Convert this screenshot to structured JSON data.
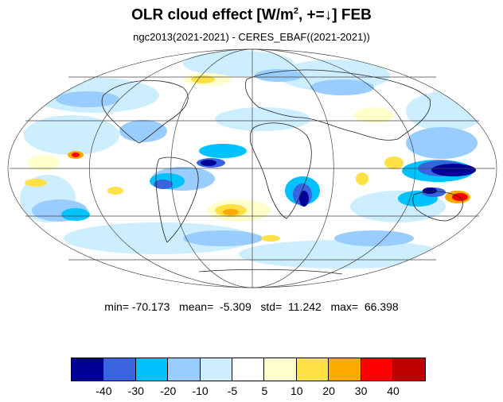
{
  "title": {
    "main": "OLR cloud effect [W/m",
    "sup": "2",
    "tail": ", +=↓]  FEB"
  },
  "subtitle": "ngc2013(2021-2021) - CERES_EBAF((2021-2021))",
  "stats": {
    "line": "min= -70.173   mean=  -5.309   std=  11.242   max=  66.398"
  },
  "colorbar": {
    "colors": [
      "#000099",
      "#3a63e0",
      "#00c2ff",
      "#99ccff",
      "#cceeff",
      "#ffffff",
      "#ffffcc",
      "#ffe045",
      "#ffaa00",
      "#ff0000",
      "#c00000"
    ],
    "ticks": [
      "-40",
      "-30",
      "-20",
      "-10",
      "-5",
      "5",
      "10",
      "20",
      "30",
      "40"
    ]
  },
  "map": {
    "projection": "Mollweide",
    "grid": true,
    "icons": [
      "world-coastlines"
    ]
  }
}
